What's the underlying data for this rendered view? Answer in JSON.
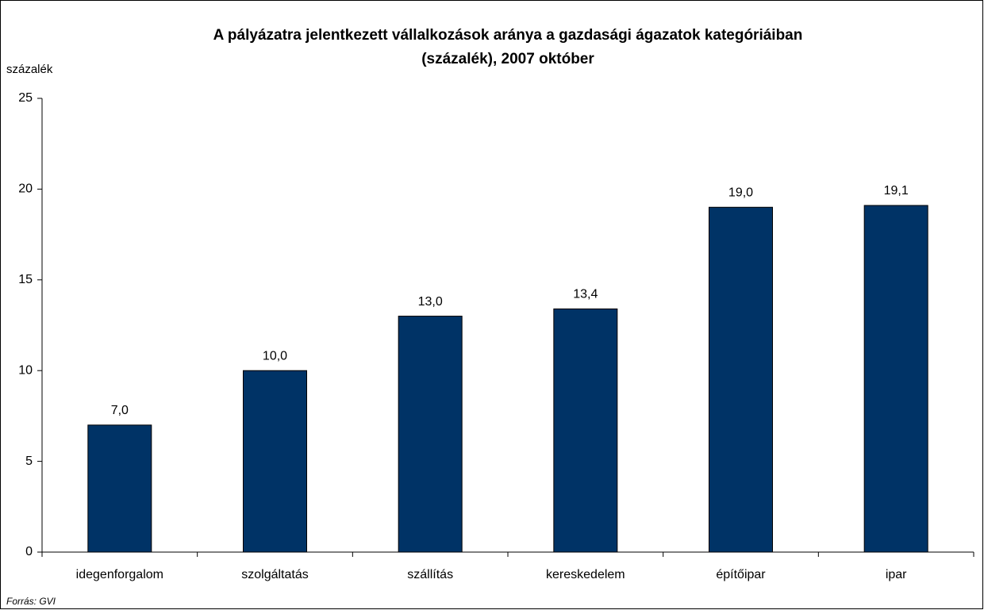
{
  "chart_data": {
    "type": "bar",
    "title": [
      "A pályázatra jelentkezett vállalkozások aránya a gazdasági ágazatok kategóriáiban",
      "(százalék), 2007 október"
    ],
    "y_label": "százalék",
    "source": "Forrás: GVI",
    "categories": [
      "idegenforgalom",
      "szolgáltatás",
      "szállítás",
      "kereskedelem",
      "építőipar",
      "ipar"
    ],
    "values": [
      7.0,
      10.0,
      13.0,
      13.4,
      19.0,
      19.1
    ],
    "value_labels": [
      "7,0",
      "10,0",
      "13,0",
      "13,4",
      "19,0",
      "19,1"
    ],
    "color": "#003366",
    "ylim": [
      0,
      25
    ],
    "yticks": [
      0,
      5,
      10,
      15,
      20,
      25
    ],
    "grid": false
  }
}
